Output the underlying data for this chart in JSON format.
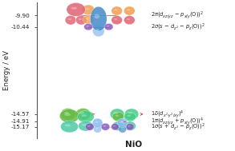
{
  "background_color": "#ffffff",
  "energy_levels": [
    -9.9,
    -10.44,
    -14.57,
    -14.91,
    -15.17
  ],
  "energy_labels": [
    "-9.90",
    "-10.44",
    "-14.57",
    "-14.91",
    "-15.17"
  ],
  "ylim": [
    -15.7,
    -9.3
  ],
  "xlim": [
    0,
    10
  ],
  "ylabel": "Energy / eV",
  "xlabel": "NiO",
  "axis_line_color": "#555555",
  "label_color": "#222222",
  "figsize": [
    2.93,
    1.89
  ],
  "dpi": 100,
  "colors": {
    "pink": "#e06878",
    "orange": "#f0a055",
    "blue": "#4a8fcc",
    "blue_light": "#88bbee",
    "purple": "#8855bb",
    "green1": "#66bb44",
    "green2": "#44cc88",
    "teal": "#44c8a0",
    "red_line": "#cc4444"
  },
  "label_texts": [
    "2π(d$_{xz/yz}$ - p$_{x/y}$(O))$^2$",
    "2σ(s - d$_{z^2}$ - p$_z$(O))$^2$",
    "1δ(d$_{x^2}$$_{-y^2/xy}$)$^4$",
    "1π(d$_{xz/yz}$ + p$_{x/y}$(O))$^4$",
    "1σ(s + d$_{z^2}$ - p$_z$(O))$^2$"
  ]
}
